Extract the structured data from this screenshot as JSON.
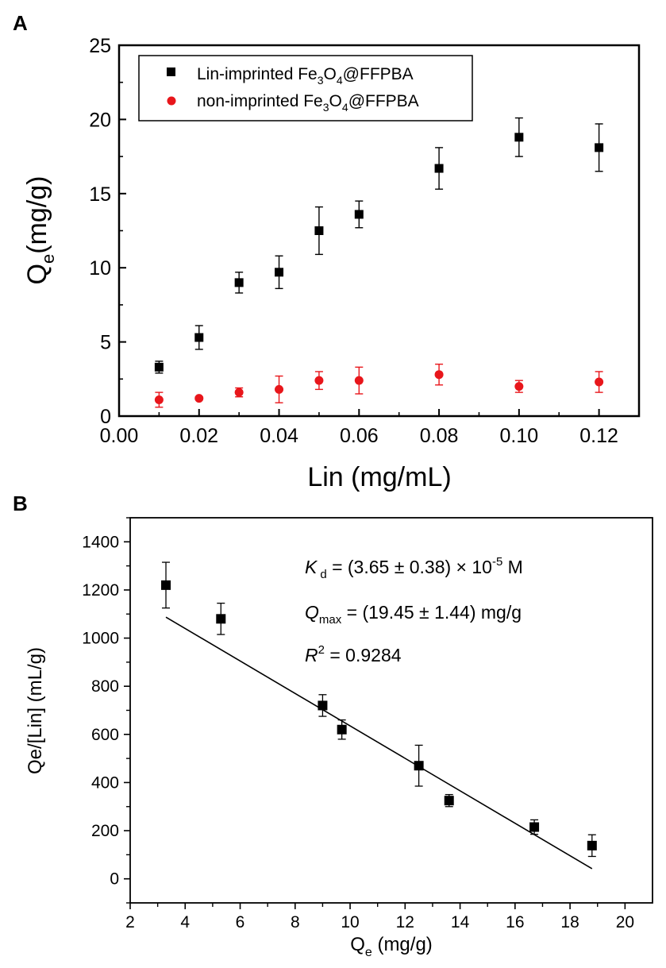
{
  "chart_data": [
    {
      "type": "scatter",
      "panel_label": "A",
      "xlabel": "Lin (mg/mL)",
      "ylabel": "Q",
      "ylabel_sub": "e",
      "ylabel_unit": "(mg/g)",
      "xlim": [
        0,
        0.13
      ],
      "ylim": [
        0,
        25
      ],
      "xticks": [
        0.0,
        0.02,
        0.04,
        0.06,
        0.08,
        0.1,
        0.12
      ],
      "yticks": [
        0,
        5,
        10,
        15,
        20,
        25
      ],
      "legend_position": "top-left",
      "series": [
        {
          "name": "Lin-imprinted Fe3O4@FFPBA",
          "legend_parts": [
            "Lin-imprinted Fe",
            "3",
            "O",
            "4",
            "@FFPBA"
          ],
          "marker": "square",
          "color": "#000000",
          "x": [
            0.01,
            0.02,
            0.03,
            0.04,
            0.05,
            0.06,
            0.08,
            0.1,
            0.12
          ],
          "y": [
            3.3,
            5.3,
            9.0,
            9.7,
            12.5,
            13.6,
            16.7,
            18.8,
            18.1
          ],
          "err": [
            0.4,
            0.8,
            0.7,
            1.1,
            1.6,
            0.9,
            1.4,
            1.3,
            1.6
          ]
        },
        {
          "name": "non-imprinted Fe3O4@FFPBA",
          "legend_parts": [
            "non-imprinted Fe",
            "3",
            "O",
            "4",
            "@FFPBA"
          ],
          "marker": "circle",
          "color": "#e8161b",
          "x": [
            0.01,
            0.02,
            0.03,
            0.04,
            0.05,
            0.06,
            0.08,
            0.1,
            0.12
          ],
          "y": [
            1.1,
            1.2,
            1.6,
            1.8,
            2.4,
            2.4,
            2.8,
            2.0,
            2.3
          ],
          "err": [
            0.5,
            0.1,
            0.3,
            0.9,
            0.6,
            0.9,
            0.7,
            0.4,
            0.7
          ]
        }
      ]
    },
    {
      "type": "scatter",
      "panel_label": "B",
      "xlabel": "Q",
      "xlabel_sub": "e",
      "xlabel_unit": " (mg/g)",
      "ylabel": "Qe/[Lin] (mL/g)",
      "xlim": [
        2,
        21
      ],
      "ylim": [
        -100,
        1500
      ],
      "xticks": [
        2,
        4,
        6,
        8,
        10,
        12,
        14,
        16,
        18,
        20
      ],
      "yticks": [
        0,
        200,
        400,
        600,
        800,
        1000,
        1200,
        1400
      ],
      "series": [
        {
          "name": "Lin-imprinted",
          "marker": "square",
          "color": "#000000",
          "x": [
            3.3,
            5.3,
            9.0,
            9.7,
            12.5,
            13.6,
            16.7,
            18.8
          ],
          "y": [
            1220,
            1080,
            720,
            620,
            470,
            325,
            215,
            138
          ],
          "err": [
            95,
            65,
            45,
            40,
            85,
            25,
            30,
            45
          ]
        }
      ],
      "fit_line": {
        "x": [
          3.3,
          18.8
        ],
        "y": [
          1087,
          42
        ]
      },
      "annotations": {
        "kd_symbol": "K",
        "kd_sub": "d",
        "kd_value": " = (3.65 ± 0.38) × 10",
        "kd_exp": "-5",
        "kd_unit": " M",
        "qmax_symbol": "Q",
        "qmax_sub": "max",
        "qmax_value": " =  (19.45 ± 1.44) mg/g",
        "r2_symbol": "R",
        "r2_exp": "2",
        "r2_value": " = 0.9284"
      }
    }
  ]
}
